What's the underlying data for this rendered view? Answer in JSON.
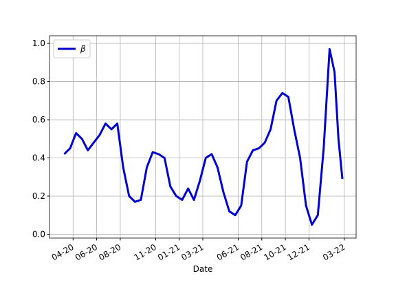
{
  "chart_data": {
    "type": "line",
    "x": [
      "2020-03",
      "2020-03",
      "2020-04",
      "2020-04",
      "2020-05",
      "2020-05",
      "2020-06",
      "2020-06",
      "2020-07",
      "2020-07",
      "2020-08",
      "2020-08",
      "2020-09",
      "2020-09",
      "2020-10",
      "2020-10",
      "2020-11",
      "2020-11",
      "2020-12",
      "2020-12",
      "2021-01",
      "2021-01",
      "2021-02",
      "2021-02",
      "2021-03",
      "2021-03",
      "2021-04",
      "2021-04",
      "2021-05",
      "2021-05",
      "2021-06",
      "2021-06",
      "2021-07",
      "2021-07",
      "2021-08",
      "2021-08",
      "2021-09",
      "2021-09",
      "2021-10",
      "2021-10",
      "2021-11",
      "2021-11",
      "2021-12",
      "2021-12",
      "2022-01",
      "2022-01",
      "2022-02",
      "2022-02",
      "2022-02"
    ],
    "series": [
      {
        "name": "β",
        "color": "#0000cc",
        "values": [
          0.42,
          0.45,
          0.53,
          0.5,
          0.44,
          0.48,
          0.52,
          0.58,
          0.55,
          0.58,
          0.35,
          0.2,
          0.17,
          0.18,
          0.35,
          0.43,
          0.42,
          0.4,
          0.25,
          0.2,
          0.18,
          0.24,
          0.18,
          0.28,
          0.4,
          0.42,
          0.35,
          0.22,
          0.12,
          0.1,
          0.15,
          0.38,
          0.44,
          0.45,
          0.48,
          0.55,
          0.7,
          0.74,
          0.72,
          0.55,
          0.4,
          0.15,
          0.05,
          0.1,
          0.45,
          0.97,
          0.85,
          0.5,
          0.29
        ]
      }
    ],
    "xlabel": "Date",
    "xlim": [
      "2020-02",
      "2022-04"
    ],
    "xticks": [
      {
        "value": "2020-04",
        "label": "04-20"
      },
      {
        "value": "2020-06",
        "label": "06-20"
      },
      {
        "value": "2020-08",
        "label": "08-20"
      },
      {
        "value": "2020-11",
        "label": "11-20"
      },
      {
        "value": "2021-01",
        "label": "01-21"
      },
      {
        "value": "2021-03",
        "label": "03-21"
      },
      {
        "value": "2021-06",
        "label": "06-21"
      },
      {
        "value": "2021-08",
        "label": "08-21"
      },
      {
        "value": "2021-10",
        "label": "10-21"
      },
      {
        "value": "2021-12",
        "label": "12-21"
      },
      {
        "value": "2022-03",
        "label": "03-22"
      }
    ],
    "ylim": [
      -0.02,
      1.04
    ],
    "yticks": [
      {
        "value": 0,
        "label": "0.0"
      },
      {
        "value": 0.2,
        "label": "0.2"
      },
      {
        "value": 0.4,
        "label": "0.4"
      },
      {
        "value": 0.6,
        "label": "0.6"
      },
      {
        "value": 0.8,
        "label": "0.8"
      },
      {
        "value": 1,
        "label": "1.0"
      }
    ],
    "grid": true,
    "legend": "upper left"
  }
}
